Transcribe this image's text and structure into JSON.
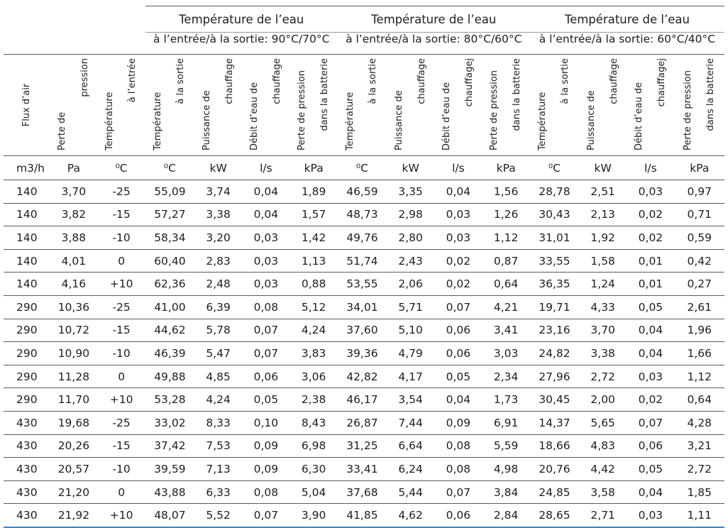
{
  "groups": [
    {
      "title": "Température de l’eau",
      "subtitle": "à l’entrée/à la sortie: 90°C/70°C"
    },
    {
      "title": "Température de l’eau",
      "subtitle": "à l’entrée/à la sortie: 80°C/60°C"
    },
    {
      "title": "Température de l’eau",
      "subtitle": "à l’entrée/à la sortie: 60°C/40°C"
    }
  ],
  "columns": [
    {
      "l1": "Flux d’air",
      "l2": ""
    },
    {
      "l1": "Perte de",
      "l2": "pression"
    },
    {
      "l1": "Température",
      "l2": "à l’entrée"
    },
    {
      "l1": "Température",
      "l2": "à la sortie"
    },
    {
      "l1": "Puissance de",
      "l2": "chauffage"
    },
    {
      "l1": "Débit d’eau de",
      "l2": "chauffage"
    },
    {
      "l1": "Perte de pression",
      "l2": "dans la batterie"
    },
    {
      "l1": "Température",
      "l2": "à la sortie"
    },
    {
      "l1": "Puissance de",
      "l2": "chauffage"
    },
    {
      "l1": "Débit d’eau de",
      "l2": "chauffagej"
    },
    {
      "l1": "Perte de pression",
      "l2": "dans la batterie"
    },
    {
      "l1": "Température",
      "l2": "à la sortie"
    },
    {
      "l1": "Puissance de",
      "l2": "chauffage"
    },
    {
      "l1": "Débit d’eau de",
      "l2": "chauffagej"
    },
    {
      "l1": "Perte de pression",
      "l2": "dans la batterie"
    }
  ],
  "units": [
    "m3/h",
    "Pa",
    "⁰C",
    "⁰C",
    "kW",
    "l/s",
    "kPa",
    "⁰C",
    "kW",
    "l/s",
    "kPa",
    "⁰C",
    "kW",
    "l/s",
    "kPa"
  ],
  "rows": [
    [
      "140",
      "3,70",
      "-25",
      "55,09",
      "3,74",
      "0,04",
      "1,89",
      "46,59",
      "3,35",
      "0,04",
      "1,56",
      "28,78",
      "2,51",
      "0,03",
      "0,97"
    ],
    [
      "140",
      "3,82",
      "-15",
      "57,27",
      "3,38",
      "0,04",
      "1,57",
      "48,73",
      "2,98",
      "0,03",
      "1,26",
      "30,43",
      "2,13",
      "0,02",
      "0,71"
    ],
    [
      "140",
      "3,88",
      "-10",
      "58,34",
      "3,20",
      "0,03",
      "1,42",
      "49,76",
      "2,80",
      "0,03",
      "1,12",
      "31,01",
      "1,92",
      "0,02",
      "0,59"
    ],
    [
      "140",
      "4,01",
      "0",
      "60,40",
      "2,83",
      "0,03",
      "1,13",
      "51,74",
      "2,43",
      "0,02",
      "0,87",
      "33,55",
      "1,58",
      "0,01",
      "0,42"
    ],
    [
      "140",
      "4,16",
      "+10",
      "62,36",
      "2,48",
      "0,03",
      "0,88",
      "53,55",
      "2,06",
      "0,02",
      "0,64",
      "36,35",
      "1,24",
      "0,01",
      "0,27"
    ],
    [
      "290",
      "10,36",
      "-25",
      "41,00",
      "6,39",
      "0,08",
      "5,12",
      "34,01",
      "5,71",
      "0,07",
      "4,21",
      "19,71",
      "4,33",
      "0,05",
      "2,61"
    ],
    [
      "290",
      "10,72",
      "-15",
      "44,62",
      "5,78",
      "0,07",
      "4,24",
      "37,60",
      "5,10",
      "0,06",
      "3,41",
      "23,16",
      "3,70",
      "0,04",
      "1,96"
    ],
    [
      "290",
      "10,90",
      "-10",
      "46,39",
      "5,47",
      "0,07",
      "3,83",
      "39,36",
      "4,79",
      "0,06",
      "3,03",
      "24,82",
      "3,38",
      "0,04",
      "1,66"
    ],
    [
      "290",
      "11,28",
      "0",
      "49,88",
      "4,85",
      "0,06",
      "3,06",
      "42,82",
      "4,17",
      "0,05",
      "2,34",
      "27,96",
      "2,72",
      "0,03",
      "1,12"
    ],
    [
      "290",
      "11,70",
      "+10",
      "53,28",
      "4,24",
      "0,05",
      "2,38",
      "46,17",
      "3,54",
      "0,04",
      "1,73",
      "30,45",
      "2,00",
      "0,02",
      "0,64"
    ],
    [
      "430",
      "19,68",
      "-25",
      "33,02",
      "8,33",
      "0,10",
      "8,43",
      "26,87",
      "7,44",
      "0,09",
      "6,91",
      "14,37",
      "5,65",
      "0,07",
      "4,28"
    ],
    [
      "430",
      "20,26",
      "-15",
      "37,42",
      "7,53",
      "0,09",
      "6,98",
      "31,25",
      "6,64",
      "0,08",
      "5,59",
      "18,66",
      "4,83",
      "0,06",
      "3,21"
    ],
    [
      "430",
      "20,57",
      "-10",
      "39,59",
      "7,13",
      "0,09",
      "6,30",
      "33,41",
      "6,24",
      "0,08",
      "4,98",
      "20,76",
      "4,42",
      "0,05",
      "2,72"
    ],
    [
      "430",
      "21,20",
      "0",
      "43,88",
      "6,33",
      "0,08",
      "5,04",
      "37,68",
      "5,44",
      "0,07",
      "3,84",
      "24,85",
      "3,58",
      "0,04",
      "1,85"
    ],
    [
      "430",
      "21,92",
      "+10",
      "48,07",
      "5,52",
      "0,07",
      "3,90",
      "41,85",
      "4,62",
      "0,06",
      "2,84",
      "28,65",
      "2,71",
      "0,03",
      "1,11"
    ]
  ]
}
